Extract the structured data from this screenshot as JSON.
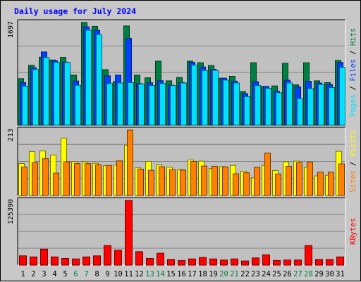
{
  "chart_data": {
    "type": "bar",
    "title": "Daily usage for July 2024",
    "categories": [
      "1",
      "2",
      "3",
      "4",
      "5",
      "6",
      "7",
      "8",
      "9",
      "10",
      "11",
      "12",
      "13",
      "14",
      "15",
      "16",
      "17",
      "18",
      "19",
      "20",
      "21",
      "22",
      "23",
      "24",
      "25",
      "26",
      "27",
      "28",
      "29",
      "30",
      "31"
    ],
    "weekend_days": [
      "6",
      "7",
      "13",
      "14",
      "20",
      "21",
      "27",
      "28"
    ],
    "panels": [
      {
        "id": "hits-files-pages",
        "max_label": "1697",
        "ylim": [
          0,
          1697
        ],
        "series": [
          {
            "name": "Hits",
            "color": "#008040",
            "values": [
              768,
              990,
              1124,
              1078,
              1120,
              828,
              1697,
              1633,
              918,
              719,
              1640,
              826,
              783,
              1059,
              734,
              788,
              1059,
              1033,
              986,
              777,
              808,
              553,
              1032,
              640,
              649,
              1022,
              667,
              1032,
              733,
              703,
              1070
            ]
          },
          {
            "name": "Files",
            "color": "#0040ff",
            "values": [
              703,
              950,
              1210,
              1066,
              1043,
              730,
              1625,
              1569,
              816,
              827,
              1434,
              688,
              700,
              735,
              661,
              706,
              1038,
              961,
              924,
              777,
              728,
              519,
              718,
              640,
              559,
              744,
              632,
              727,
              696,
              672,
              1038
            ]
          },
          {
            "name": "Pages",
            "color": "#00e0ff",
            "values": [
              646,
              920,
              1117,
              1039,
              1037,
              659,
              1570,
              1498,
              688,
              697,
              703,
              680,
              655,
              689,
              654,
              698,
              993,
              904,
              905,
              745,
              697,
              473,
              655,
              609,
              536,
              698,
              441,
              605,
              672,
              622,
              955
            ]
          }
        ]
      },
      {
        "id": "visits-sites",
        "max_label": "213",
        "ylim": [
          0,
          213
        ],
        "series": [
          {
            "name": "Visits",
            "color": "#ffff00",
            "values": [
              104,
              143,
              145,
              132,
              187,
              110,
              110,
              105,
              97,
              99,
              164,
              90,
              111,
              100,
              92,
              85,
              116,
              112,
              88,
              94,
              98,
              79,
              58,
              98,
              81,
              110,
              112,
              92,
              64,
              66,
              144
            ]
          },
          {
            "name": "Sites",
            "color": "#ff8000",
            "values": [
              93,
              107,
              120,
              73,
              110,
              104,
              104,
              100,
              98,
              113,
              213,
              86,
              82,
              94,
              84,
              83,
              111,
              96,
              95,
              93,
              71,
              74,
              92,
              138,
              70,
              95,
              107,
              109,
              76,
              76,
              103
            ]
          }
        ]
      },
      {
        "id": "kbytes",
        "max_label": "125390",
        "ylim": [
          0,
          125390
        ],
        "series": [
          {
            "name": "KBytes",
            "color": "#ff0000",
            "values": [
              18000,
              16000,
              31000,
              16000,
              13000,
              12000,
              16000,
              18000,
              38000,
              29000,
              125390,
              26000,
              13000,
              23000,
              11000,
              9000,
              12000,
              15000,
              12000,
              10000,
              12000,
              8000,
              14000,
              20000,
              9000,
              10000,
              10000,
              38000,
              11000,
              11000,
              16000
            ]
          }
        ]
      }
    ],
    "right_labels": [
      {
        "parts": [
          {
            "text": "Pages",
            "color": "#00e0ff"
          },
          {
            "text": " / ",
            "color": "#000000"
          },
          {
            "text": "Files",
            "color": "#0040ff"
          },
          {
            "text": " / ",
            "color": "#000000"
          },
          {
            "text": "Hits",
            "color": "#008040"
          }
        ]
      },
      {
        "parts": [
          {
            "text": "Sites",
            "color": "#ff8000"
          },
          {
            "text": " / ",
            "color": "#000000"
          },
          {
            "text": "Visits",
            "color": "#ffff00"
          }
        ]
      },
      {
        "parts": [
          {
            "text": "KBytes",
            "color": "#ff0000"
          }
        ]
      }
    ],
    "colors": {
      "title": "#0000ff",
      "background": "#c8c8c8",
      "plot_background": "#c0c0c0",
      "weekend_label": "#008040",
      "weekday_label": "#000000"
    },
    "grid": true
  }
}
